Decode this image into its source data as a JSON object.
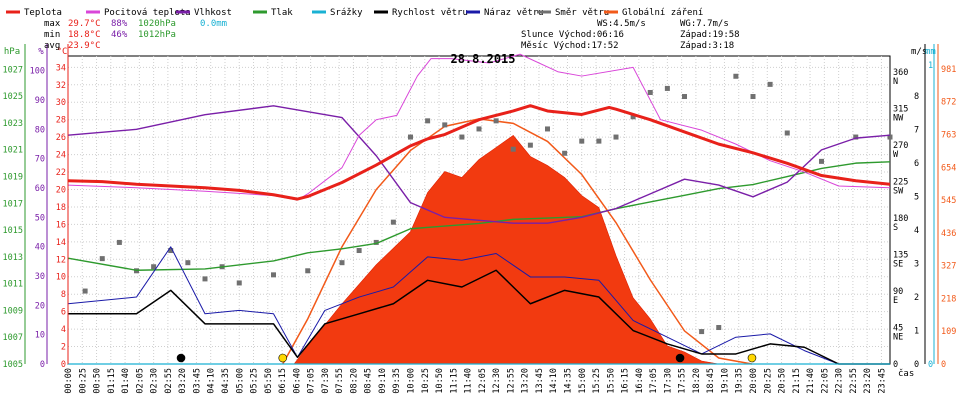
{
  "chart_data": {
    "type": "line",
    "title": "28.8.2015",
    "legend": [
      {
        "label": "Teplota",
        "color": "#e8211a",
        "key": "temp"
      },
      {
        "label": "Pocitová teplota",
        "color": "#d946d9",
        "key": "feels"
      },
      {
        "label": "Vlhkost",
        "color": "#7a1fa8",
        "key": "hum"
      },
      {
        "label": "Tlak",
        "color": "#2e9a2e",
        "key": "press"
      },
      {
        "label": "Srážky",
        "color": "#19b1d3",
        "key": "rain"
      },
      {
        "label": "Rychlost větru",
        "color": "#000000",
        "key": "ws"
      },
      {
        "label": "Náraz větru",
        "color": "#1a1aa8",
        "key": "gust"
      },
      {
        "label": "Směr větru",
        "color": "#707070",
        "key": "dir"
      },
      {
        "label": "Globální záření",
        "color": "#f25a1a",
        "key": "rad"
      }
    ],
    "stats": {
      "max": {
        "label": "max",
        "temp": "29.7°C",
        "hum": "88%",
        "press": "1020hPa",
        "rain": "0.0mm"
      },
      "min": {
        "label": "min",
        "temp": "18.8°C",
        "hum": "46%",
        "press": "1012hPa"
      },
      "avg": {
        "label": "avg",
        "temp": "23.9°C"
      }
    },
    "wind_info": {
      "ws": "WS:4.5m/s",
      "wg": "WG:7.7m/s"
    },
    "sun": {
      "sunrise": "Slunce Východ:06:16",
      "sunset": "Západ:19:58"
    },
    "moon": {
      "moonrise": "Měsíc Východ:17:52",
      "moonset": "Západ:3:18"
    },
    "axes": {
      "pressure": {
        "unit": "hPa",
        "min": 1005,
        "max": 1028,
        "ticks": [
          "1027",
          "1025",
          "1023",
          "1021",
          "1019",
          "1017",
          "1015",
          "1013",
          "1011",
          "1009",
          "1007",
          "1005"
        ]
      },
      "humidity": {
        "unit": "%",
        "min": 0,
        "max": 105,
        "ticks": [
          "100",
          "90",
          "80",
          "70",
          "60",
          "50",
          "40",
          "30",
          "20",
          "10",
          "0"
        ]
      },
      "temperature": {
        "unit": "°C",
        "min": 0,
        "max": 35.3,
        "ticks": [
          "34",
          "32",
          "30",
          "28",
          "26",
          "24",
          "22",
          "20",
          "18",
          "16",
          "14",
          "12",
          "10",
          "8",
          "6",
          "4",
          "2",
          "0"
        ]
      },
      "direction": {
        "unit": "°",
        "ticks": [
          {
            "v": "360",
            "l": "N"
          },
          {
            "v": "315",
            "l": "NW"
          },
          {
            "v": "270",
            "l": "W"
          },
          {
            "v": "225",
            "l": "SW"
          },
          {
            "v": "180",
            "l": "S"
          },
          {
            "v": "135",
            "l": "SE"
          },
          {
            "v": "90",
            "l": "E"
          },
          {
            "v": "45",
            "l": "NE"
          },
          {
            "v": "0",
            "l": ""
          }
        ]
      },
      "wind": {
        "unit": "m/s",
        "min": 0,
        "max": 9.2,
        "ticks": [
          "8",
          "7",
          "6",
          "5",
          "4",
          "3",
          "2",
          "1",
          "0"
        ]
      },
      "rain": {
        "unit": "mm",
        "ticks": [
          "1",
          "0"
        ]
      },
      "radiation": {
        "unit": "W/m²",
        "min": 0,
        "max": 1024,
        "ticks": [
          "981",
          "872",
          "763",
          "654",
          "545",
          "436",
          "327",
          "218",
          "109",
          "0"
        ]
      },
      "x_label": "čas"
    },
    "x_ticks": [
      "00:00",
      "00:25",
      "00:50",
      "01:15",
      "01:40",
      "02:05",
      "02:30",
      "02:55",
      "03:20",
      "03:45",
      "04:10",
      "04:35",
      "05:00",
      "05:25",
      "05:50",
      "06:15",
      "06:40",
      "07:05",
      "07:30",
      "07:55",
      "08:20",
      "08:45",
      "09:10",
      "09:35",
      "10:00",
      "10:25",
      "10:50",
      "11:15",
      "11:40",
      "12:05",
      "12:30",
      "12:55",
      "13:20",
      "13:45",
      "14:10",
      "14:35",
      "15:00",
      "15:25",
      "15:50",
      "16:15",
      "16:40",
      "17:05",
      "17:30",
      "17:55",
      "18:20",
      "18:45",
      "19:10",
      "19:35",
      "20:00",
      "20:25",
      "20:50",
      "21:15",
      "21:40",
      "22:05",
      "22:30",
      "22:55",
      "23:20",
      "23:45"
    ],
    "x_unit": "hours",
    "temperature": [
      [
        0,
        21.0
      ],
      [
        1,
        20.9
      ],
      [
        2,
        20.6
      ],
      [
        3,
        20.4
      ],
      [
        4,
        20.2
      ],
      [
        5,
        19.9
      ],
      [
        6,
        19.4
      ],
      [
        6.7,
        18.9
      ],
      [
        7,
        19.2
      ],
      [
        8,
        20.8
      ],
      [
        9,
        22.8
      ],
      [
        10,
        25.0
      ],
      [
        10.5,
        25.8
      ],
      [
        11,
        26.3
      ],
      [
        12,
        28.0
      ],
      [
        13,
        29.0
      ],
      [
        13.5,
        29.6
      ],
      [
        14,
        29.0
      ],
      [
        15,
        28.6
      ],
      [
        15.8,
        29.4
      ],
      [
        16,
        29.2
      ],
      [
        17,
        28.0
      ],
      [
        18,
        26.6
      ],
      [
        19,
        25.2
      ],
      [
        20,
        24.2
      ],
      [
        21,
        23.0
      ],
      [
        22,
        21.6
      ],
      [
        23,
        21.0
      ],
      [
        24,
        20.6
      ]
    ],
    "feels_like": [
      [
        0,
        20.5
      ],
      [
        2,
        20.2
      ],
      [
        4,
        19.8
      ],
      [
        6,
        19.3
      ],
      [
        6.7,
        18.8
      ],
      [
        7,
        19.5
      ],
      [
        8,
        22.5
      ],
      [
        8.5,
        26.2
      ],
      [
        9,
        28.0
      ],
      [
        9.6,
        28.5
      ],
      [
        10.2,
        33.0
      ],
      [
        10.6,
        35.0
      ],
      [
        11.2,
        35.0
      ],
      [
        12.3,
        34.5
      ],
      [
        13.2,
        35.5
      ],
      [
        14.3,
        33.5
      ],
      [
        15.0,
        33.0
      ],
      [
        16.5,
        34.0
      ],
      [
        17.3,
        28.0
      ],
      [
        18.5,
        26.8
      ],
      [
        19.5,
        25.2
      ],
      [
        20.5,
        23.3
      ],
      [
        21.5,
        22.0
      ],
      [
        22.5,
        20.4
      ],
      [
        24,
        20.2
      ]
    ],
    "humidity": [
      [
        0,
        78
      ],
      [
        2,
        80
      ],
      [
        4,
        85
      ],
      [
        6,
        88
      ],
      [
        7,
        86
      ],
      [
        8,
        84
      ],
      [
        9,
        71
      ],
      [
        10,
        55
      ],
      [
        11,
        50
      ],
      [
        12,
        49
      ],
      [
        13,
        48
      ],
      [
        14,
        48
      ],
      [
        15,
        50
      ],
      [
        16,
        53
      ],
      [
        17,
        58
      ],
      [
        18,
        63
      ],
      [
        19,
        61
      ],
      [
        20,
        57
      ],
      [
        21,
        62
      ],
      [
        22,
        73
      ],
      [
        23,
        77
      ],
      [
        24,
        78
      ]
    ],
    "pressure": [
      [
        0,
        1012.9
      ],
      [
        2,
        1012.0
      ],
      [
        4,
        1012.1
      ],
      [
        6,
        1012.7
      ],
      [
        7,
        1013.3
      ],
      [
        8,
        1013.6
      ],
      [
        9,
        1014.0
      ],
      [
        10,
        1015.1
      ],
      [
        11,
        1015.3
      ],
      [
        12,
        1015.5
      ],
      [
        13,
        1015.8
      ],
      [
        14,
        1015.9
      ],
      [
        15,
        1016.0
      ],
      [
        16,
        1016.6
      ],
      [
        17,
        1017.1
      ],
      [
        18,
        1017.6
      ],
      [
        19,
        1018.1
      ],
      [
        20,
        1018.4
      ],
      [
        21,
        1019.0
      ],
      [
        22,
        1019.6
      ],
      [
        23,
        1020.0
      ],
      [
        24,
        1020.1
      ]
    ],
    "rain_mm": [
      [
        0,
        0
      ],
      [
        24,
        0
      ]
    ],
    "wind_speed": [
      [
        0,
        1.5
      ],
      [
        2,
        1.5
      ],
      [
        3,
        2.2
      ],
      [
        4,
        1.2
      ],
      [
        5,
        1.2
      ],
      [
        6,
        1.2
      ],
      [
        6.7,
        0.2
      ],
      [
        7.5,
        1.2
      ],
      [
        8.5,
        1.5
      ],
      [
        9.5,
        1.8
      ],
      [
        10.5,
        2.5
      ],
      [
        11.5,
        2.3
      ],
      [
        12.5,
        2.8
      ],
      [
        13.5,
        1.8
      ],
      [
        14.5,
        2.2
      ],
      [
        15.5,
        2.0
      ],
      [
        16.5,
        1.0
      ],
      [
        17.5,
        0.6
      ],
      [
        18.5,
        0.3
      ],
      [
        19.5,
        0.3
      ],
      [
        20.5,
        0.6
      ],
      [
        21.5,
        0.5
      ],
      [
        22.5,
        0
      ],
      [
        24,
        0
      ]
    ],
    "wind_gust": [
      [
        0,
        1.8
      ],
      [
        2,
        2.0
      ],
      [
        3,
        3.5
      ],
      [
        4,
        1.5
      ],
      [
        5,
        1.6
      ],
      [
        6,
        1.5
      ],
      [
        6.7,
        0.2
      ],
      [
        7.5,
        1.6
      ],
      [
        8.5,
        2.0
      ],
      [
        9.5,
        2.3
      ],
      [
        10.5,
        3.2
      ],
      [
        11.5,
        3.1
      ],
      [
        12.5,
        3.3
      ],
      [
        13.5,
        2.6
      ],
      [
        14.5,
        2.6
      ],
      [
        15.5,
        2.5
      ],
      [
        16.5,
        1.3
      ],
      [
        17.5,
        0.8
      ],
      [
        18.5,
        0.3
      ],
      [
        19.5,
        0.8
      ],
      [
        20.5,
        0.9
      ],
      [
        21.5,
        0.4
      ],
      [
        22.5,
        0
      ],
      [
        24,
        0
      ]
    ],
    "wind_direction": [
      [
        0.5,
        90
      ],
      [
        1,
        130
      ],
      [
        1.5,
        150
      ],
      [
        2,
        115
      ],
      [
        2.5,
        120
      ],
      [
        3,
        140
      ],
      [
        3.5,
        125
      ],
      [
        4,
        105
      ],
      [
        4.5,
        120
      ],
      [
        5,
        100
      ],
      [
        6,
        110
      ],
      [
        7,
        115
      ],
      [
        8,
        125
      ],
      [
        8.5,
        140
      ],
      [
        9,
        150
      ],
      [
        9.5,
        175
      ],
      [
        10,
        280
      ],
      [
        10.5,
        300
      ],
      [
        11,
        295
      ],
      [
        11.5,
        280
      ],
      [
        12,
        290
      ],
      [
        12.5,
        300
      ],
      [
        13,
        265
      ],
      [
        13.5,
        270
      ],
      [
        14,
        290
      ],
      [
        14.5,
        260
      ],
      [
        15,
        275
      ],
      [
        15.5,
        275
      ],
      [
        16,
        280
      ],
      [
        16.5,
        305
      ],
      [
        17,
        335
      ],
      [
        17.5,
        340
      ],
      [
        18,
        330
      ],
      [
        18.5,
        40
      ],
      [
        19,
        45
      ],
      [
        19.5,
        355
      ],
      [
        20,
        330
      ],
      [
        20.5,
        345
      ],
      [
        21,
        285
      ],
      [
        22,
        250
      ],
      [
        23,
        280
      ],
      [
        24,
        280
      ]
    ],
    "radiation": [
      [
        0,
        0
      ],
      [
        6.6,
        0
      ],
      [
        7,
        60
      ],
      [
        8,
        200
      ],
      [
        9,
        330
      ],
      [
        10,
        440
      ],
      [
        10.5,
        570
      ],
      [
        11,
        640
      ],
      [
        11.5,
        620
      ],
      [
        12,
        680
      ],
      [
        12.5,
        720
      ],
      [
        13,
        760
      ],
      [
        13.5,
        690
      ],
      [
        14,
        660
      ],
      [
        14.5,
        620
      ],
      [
        15,
        560
      ],
      [
        15.5,
        520
      ],
      [
        16,
        360
      ],
      [
        16.5,
        220
      ],
      [
        17,
        150
      ],
      [
        17.5,
        60
      ],
      [
        18,
        40
      ],
      [
        18.5,
        10
      ],
      [
        19,
        0
      ],
      [
        24,
        0
      ]
    ],
    "clear_sky_radiation": [
      [
        6.27,
        0
      ],
      [
        7,
        150
      ],
      [
        8,
        390
      ],
      [
        9,
        580
      ],
      [
        10,
        710
      ],
      [
        11,
        790
      ],
      [
        12,
        815
      ],
      [
        13,
        800
      ],
      [
        14,
        740
      ],
      [
        15,
        630
      ],
      [
        16,
        470
      ],
      [
        17,
        280
      ],
      [
        18,
        110
      ],
      [
        19,
        20
      ],
      [
        19.97,
        0
      ]
    ],
    "markers": [
      {
        "type": "moonset",
        "t": 3.3,
        "color": "#000000"
      },
      {
        "type": "sunrise",
        "t": 6.27,
        "color": "#ffd700"
      },
      {
        "type": "moonrise",
        "t": 17.87,
        "color": "#000000"
      },
      {
        "type": "sunset",
        "t": 19.97,
        "color": "#ffd700"
      }
    ]
  }
}
